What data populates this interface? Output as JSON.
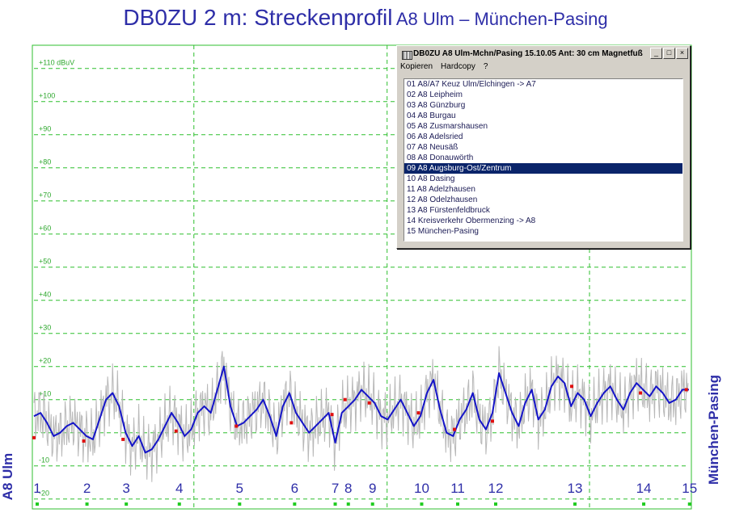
{
  "title": {
    "main": "DB0ZU 2 m:  Streckenprofil",
    "sub": "A8 Ulm – München-Pasing"
  },
  "side_labels": {
    "left": "A8 Ulm",
    "right": "München-Pasing"
  },
  "window": {
    "title": "DB0ZU A8 Ulm-Mchn/Pasing 15.10.05 Ant: 30 cm Magnetfuß",
    "menu": [
      "Kopieren",
      "Hardcopy",
      "?"
    ],
    "buttons": [
      "_",
      "□",
      "×"
    ],
    "selected_index": 8,
    "items": [
      "01  A8/A7 Keuz Ulm/Elchingen -> A7",
      "02  A8 Leipheim",
      "03  A8 Günzburg",
      "04  A8 Burgau",
      "05  A8 Zusmarshausen",
      "06  A8 Adelsried",
      "07  A8 Neusäß",
      "08  A8  Donauwörth",
      "09  A8 Augsburg-Ost/Zentrum",
      "10  A8 Dasing",
      "11  A8 Adelzhausen",
      "12  A8 Odelzhausen",
      "13  A8 Fürstenfeldbruck",
      "14  Kreisverkehr Obermenzing -> A8",
      "15  München-Pasing"
    ]
  },
  "colors": {
    "title": "#2e2ea8",
    "axis_label": "#2fa82f",
    "grid": "#2fbf2f",
    "trace": "#1515c8",
    "raw": "#b8b8b8",
    "marker": "#e01010",
    "selection": "#0a246a"
  },
  "chart_data": {
    "type": "line",
    "y_unit": "dBuV",
    "y_ticks": [
      "-20",
      "-10",
      "+10",
      "+20",
      "+30",
      "+40",
      "+50",
      "+60",
      "+70",
      "+80",
      "+90",
      "+100",
      "+110 dBuV"
    ],
    "y_tick_values": [
      -20,
      -10,
      10,
      20,
      30,
      40,
      50,
      60,
      70,
      80,
      90,
      100,
      110
    ],
    "ylim": [
      -23,
      117
    ],
    "x_markers": [
      {
        "label": "1",
        "pos": 0.0
      },
      {
        "label": "2",
        "pos": 0.076
      },
      {
        "label": "3",
        "pos": 0.136
      },
      {
        "label": "4",
        "pos": 0.217
      },
      {
        "label": "5",
        "pos": 0.309
      },
      {
        "label": "6",
        "pos": 0.393
      },
      {
        "label": "7",
        "pos": 0.455
      },
      {
        "label": "8",
        "pos": 0.475
      },
      {
        "label": "9",
        "pos": 0.512
      },
      {
        "label": "10",
        "pos": 0.587
      },
      {
        "label": "11",
        "pos": 0.642
      },
      {
        "label": "12",
        "pos": 0.7
      },
      {
        "label": "13",
        "pos": 0.821
      },
      {
        "label": "14",
        "pos": 0.926
      },
      {
        "label": "15",
        "pos": 0.996
      }
    ],
    "series": [
      {
        "style": "smoothed",
        "x": [
          0,
          0.01,
          0.02,
          0.03,
          0.04,
          0.05,
          0.06,
          0.07,
          0.08,
          0.09,
          0.1,
          0.11,
          0.12,
          0.13,
          0.14,
          0.15,
          0.16,
          0.17,
          0.18,
          0.19,
          0.2,
          0.21,
          0.22,
          0.23,
          0.24,
          0.25,
          0.26,
          0.27,
          0.28,
          0.29,
          0.3,
          0.31,
          0.32,
          0.33,
          0.34,
          0.35,
          0.36,
          0.37,
          0.38,
          0.39,
          0.4,
          0.41,
          0.42,
          0.43,
          0.44,
          0.45,
          0.46,
          0.47,
          0.48,
          0.49,
          0.5,
          0.51,
          0.52,
          0.53,
          0.54,
          0.55,
          0.56,
          0.57,
          0.58,
          0.59,
          0.6,
          0.61,
          0.62,
          0.63,
          0.64,
          0.65,
          0.66,
          0.67,
          0.68,
          0.69,
          0.7,
          0.71,
          0.72,
          0.73,
          0.74,
          0.75,
          0.76,
          0.77,
          0.78,
          0.79,
          0.8,
          0.81,
          0.82,
          0.83,
          0.84,
          0.85,
          0.86,
          0.87,
          0.88,
          0.89,
          0.9,
          0.91,
          0.92,
          0.93,
          0.94,
          0.95,
          0.96,
          0.97,
          0.98,
          0.99,
          1.0
        ],
        "values": [
          5,
          6,
          3,
          -1,
          0,
          2,
          3,
          1,
          -1,
          -2,
          4,
          10,
          12,
          8,
          0,
          -4,
          -1,
          -6,
          -5,
          -2,
          2,
          6,
          3,
          -1,
          1,
          6,
          8,
          6,
          13,
          20,
          8,
          2,
          3,
          5,
          7,
          10,
          5,
          -1,
          8,
          12,
          6,
          3,
          0,
          2,
          4,
          6,
          -3,
          6,
          8,
          10,
          13,
          11,
          9,
          5,
          4,
          7,
          10,
          6,
          2,
          5,
          12,
          16,
          7,
          0,
          -1,
          4,
          7,
          12,
          4,
          1,
          6,
          18,
          12,
          6,
          2,
          9,
          13,
          4,
          7,
          14,
          17,
          15,
          8,
          12,
          10,
          5,
          9,
          12,
          14,
          10,
          7,
          12,
          15,
          13,
          11,
          14,
          12,
          9,
          10,
          13,
          13
        ]
      }
    ],
    "markers": [
      {
        "marker": 1,
        "value": -1.5
      },
      {
        "marker": 2,
        "value": -2.5
      },
      {
        "marker": 3,
        "value": -2
      },
      {
        "marker": 4,
        "value": 0.5
      },
      {
        "marker": 5,
        "value": 2
      },
      {
        "marker": 6,
        "value": 3
      },
      {
        "marker": 7,
        "value": 5.5
      },
      {
        "marker": 8,
        "value": 10
      },
      {
        "marker": 9,
        "value": 9
      },
      {
        "marker": 10,
        "value": 6
      },
      {
        "marker": 11,
        "value": 1
      },
      {
        "marker": 12,
        "value": 3.5
      },
      {
        "marker": 13,
        "value": 14
      },
      {
        "marker": 14,
        "value": 12
      },
      {
        "marker": 15,
        "value": 13
      }
    ]
  }
}
